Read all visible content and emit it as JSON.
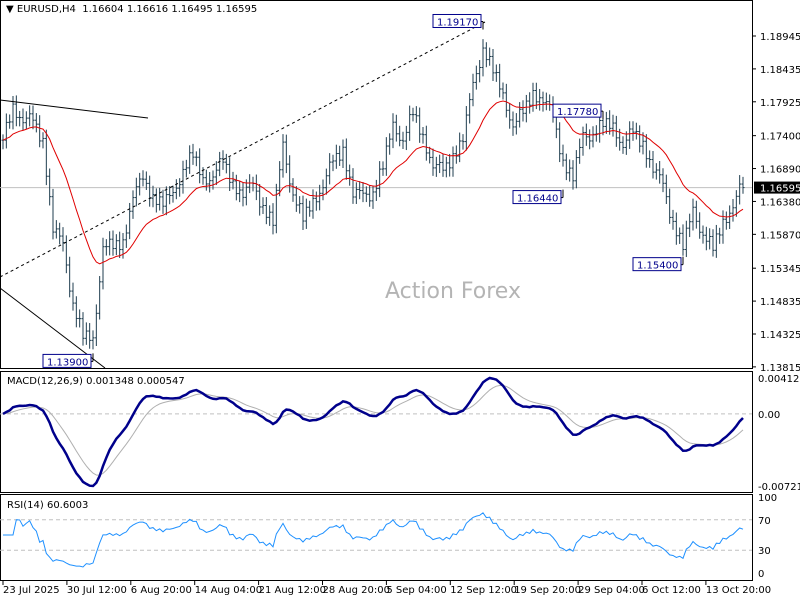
{
  "header": {
    "symbol": "EURUSD,H4",
    "open": "1.16604",
    "high": "1.16616",
    "low": "1.16495",
    "close": "1.16595"
  },
  "watermark": "Action Forex",
  "colors": {
    "bars": "#1f3d4f",
    "ma": "#e00000",
    "macd": "#00008b",
    "signal": "#b0b0b0",
    "rsi": "#1e90ff",
    "price_tag_bg": "#000000",
    "grid_dash": "#c0c0c0"
  },
  "chart_data": [
    {
      "type": "ohlc",
      "symbol": "EURUSD",
      "timeframe": "H4",
      "ylim": [
        1.13815,
        1.192
      ],
      "y_ticks": [
        "1.18945",
        "1.18435",
        "1.17925",
        "1.17400",
        "1.16890",
        "1.16380",
        "1.15870",
        "1.15345",
        "1.14835",
        "1.14325",
        "1.13815"
      ],
      "current_price": "1.16595",
      "x_ticks": [
        "23 Jul 2025",
        "30 Jul 12:00",
        "6 Aug 20:00",
        "14 Aug 04:00",
        "21 Aug 12:00",
        "28 Aug 20:00",
        "5 Sep 04:00",
        "12 Sep 12:00",
        "19 Sep 20:00",
        "29 Sep 04:00",
        "6 Oct 12:00",
        "13 Oct 20:00"
      ],
      "closes": [
        1.1733,
        1.178,
        1.1772,
        1.1757,
        1.1733,
        1.1601,
        1.1563,
        1.1485,
        1.1431,
        1.1415,
        1.1578,
        1.1563,
        1.1571,
        1.1656,
        1.1664,
        1.1648,
        1.164,
        1.164,
        1.1694,
        1.171,
        1.1664,
        1.1687,
        1.1695,
        1.1664,
        1.1656,
        1.1656,
        1.1633,
        1.1609,
        1.1718,
        1.1656,
        1.1609,
        1.1633,
        1.1671,
        1.1695,
        1.1718,
        1.1656,
        1.164,
        1.1656,
        1.1695,
        1.1749,
        1.1741,
        1.1772,
        1.1733,
        1.1702,
        1.1679,
        1.171,
        1.1741,
        1.1811,
        1.1881,
        1.1842,
        1.1795,
        1.1764,
        1.1772,
        1.1803,
        1.1803,
        1.1764,
        1.1702,
        1.1679,
        1.1733,
        1.1749,
        1.1757,
        1.1749,
        1.1733,
        1.1741,
        1.1726,
        1.1695,
        1.1656,
        1.1609,
        1.1571,
        1.1617,
        1.1594,
        1.1563,
        1.1601,
        1.164,
        1.16595
      ],
      "annotations": [
        {
          "label": "1.19170",
          "price": 1.1917,
          "at_close_index": 48
        },
        {
          "label": "1.17780",
          "price": 1.1778,
          "at_close_index": 60
        },
        {
          "label": "1.16440",
          "price": 1.1644,
          "at_close_index": 56
        },
        {
          "label": "1.15400",
          "price": 1.154,
          "at_close_index": 68
        },
        {
          "label": "1.13900",
          "price": 1.139,
          "at_close_index": 9
        }
      ],
      "overlay": "moving average"
    },
    {
      "type": "line",
      "title": "MACD(12,26,9) 0.001348 0.000547",
      "ylim": [
        -0.007216,
        0.004128
      ],
      "y_ticks": [
        "0.004128",
        "0.00",
        "-0.007216"
      ]
    },
    {
      "type": "line",
      "title": "RSI(14) 60.6003",
      "ylim": [
        0,
        100
      ],
      "y_ticks": [
        "100",
        "70",
        "30",
        "0"
      ],
      "levels": [
        70,
        30
      ]
    }
  ]
}
